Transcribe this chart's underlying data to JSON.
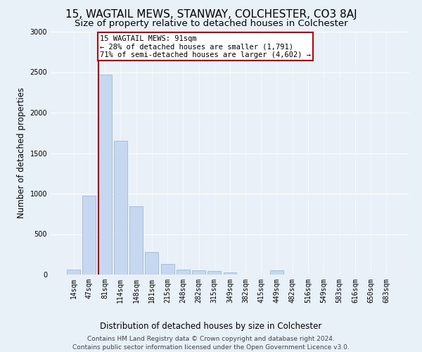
{
  "title": "15, WAGTAIL MEWS, STANWAY, COLCHESTER, CO3 8AJ",
  "subtitle": "Size of property relative to detached houses in Colchester",
  "xlabel": "Distribution of detached houses by size in Colchester",
  "ylabel": "Number of detached properties",
  "footer_line1": "Contains HM Land Registry data © Crown copyright and database right 2024.",
  "footer_line2": "Contains public sector information licensed under the Open Government Licence v3.0.",
  "property_label": "15 WAGTAIL MEWS: 91sqm",
  "annotation_line1": "← 28% of detached houses are smaller (1,791)",
  "annotation_line2": "71% of semi-detached houses are larger (4,602) →",
  "categories": [
    "14sqm",
    "47sqm",
    "81sqm",
    "114sqm",
    "148sqm",
    "181sqm",
    "215sqm",
    "248sqm",
    "282sqm",
    "315sqm",
    "349sqm",
    "382sqm",
    "415sqm",
    "449sqm",
    "482sqm",
    "516sqm",
    "549sqm",
    "583sqm",
    "616sqm",
    "650sqm",
    "683sqm"
  ],
  "values": [
    60,
    970,
    2470,
    1650,
    840,
    280,
    130,
    60,
    50,
    40,
    30,
    0,
    0,
    50,
    0,
    0,
    0,
    0,
    0,
    0,
    0
  ],
  "bar_color": "#c5d8f0",
  "bar_edge_color": "#a0b8d8",
  "vline_color": "#cc0000",
  "vline_x_index": 2,
  "annotation_box_color": "#cc0000",
  "background_color": "#e8f0f8",
  "plot_bg_color": "#eaf0f8",
  "ylim": [
    0,
    3000
  ],
  "yticks": [
    0,
    500,
    1000,
    1500,
    2000,
    2500,
    3000
  ],
  "title_fontsize": 11,
  "subtitle_fontsize": 9.5,
  "axis_label_fontsize": 8.5,
  "tick_fontsize": 7,
  "footer_fontsize": 6.5,
  "annotation_fontsize": 7.5
}
